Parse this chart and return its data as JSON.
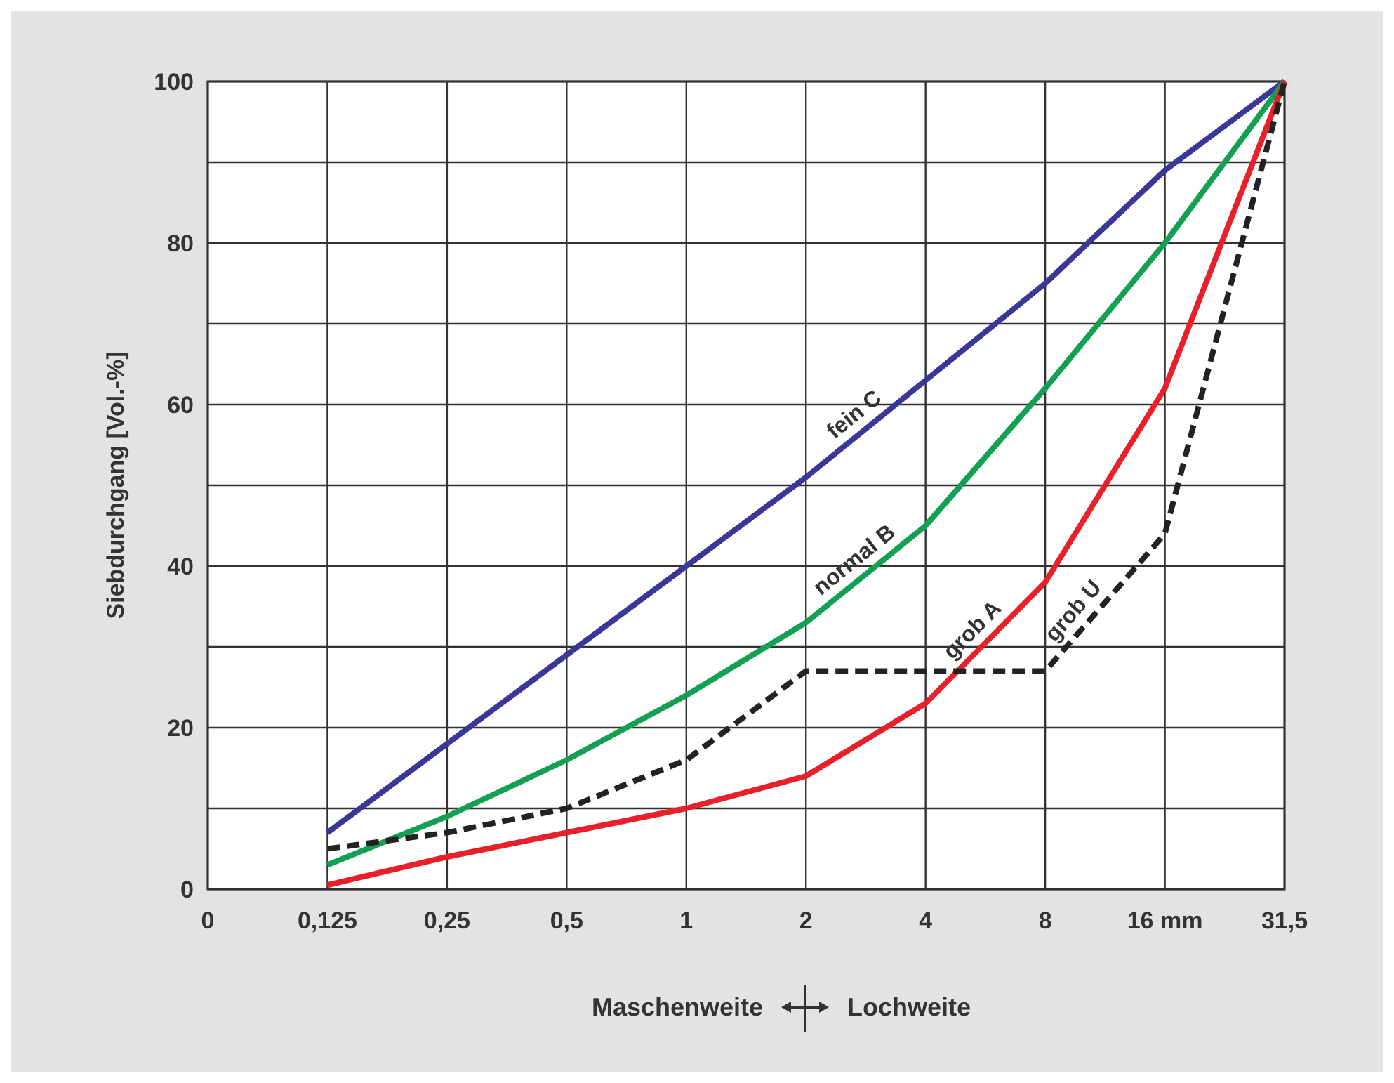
{
  "chart_data": {
    "type": "line",
    "ylabel": "Siebdurchgang  [Vol.-%]",
    "categories": [
      "0",
      "0,125",
      "0,25",
      "0,5",
      "1",
      "2",
      "4",
      "8",
      "16 mm",
      "31,5"
    ],
    "ylim": [
      0,
      100
    ],
    "yticks": [
      0,
      {
        "value": 10,
        "label": null
      },
      20,
      {
        "value": 30,
        "label": null
      },
      40,
      {
        "value": 50,
        "label": null
      },
      60,
      {
        "value": 70,
        "label": null
      },
      80,
      {
        "value": 90,
        "label": null
      },
      100
    ],
    "grid": true,
    "marker": "none",
    "series": [
      {
        "name": "fein C",
        "color": "#3b3796",
        "line_style": "solid",
        "values": [
          null,
          7,
          18,
          29,
          40,
          51,
          63,
          75,
          89,
          100
        ]
      },
      {
        "name": "normal B",
        "color": "#13a052",
        "line_style": "solid",
        "values": [
          null,
          3,
          9,
          16,
          24,
          33,
          45,
          62,
          80,
          100
        ]
      },
      {
        "name": "grob A",
        "color": "#e8202a",
        "line_style": "solid",
        "values": [
          null,
          0.5,
          4,
          7,
          10,
          14,
          23,
          38,
          62,
          100
        ]
      },
      {
        "name": "grob U",
        "color": "#222222",
        "line_style": "dashed",
        "values": [
          null,
          5,
          7,
          10,
          16,
          27,
          27,
          27,
          44,
          100
        ]
      }
    ],
    "annotations": [
      "Maschenweite",
      "Lochweite"
    ]
  }
}
